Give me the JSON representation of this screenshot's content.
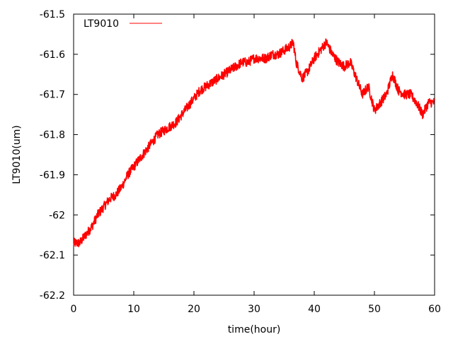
{
  "chart_data": {
    "type": "line",
    "xlabel": "time(hour)",
    "ylabel": "LT9010(um)",
    "xlim": [
      0,
      60
    ],
    "ylim": [
      -62.2,
      -61.5
    ],
    "x_ticks": [
      "0",
      "10",
      "20",
      "30",
      "40",
      "50",
      "60"
    ],
    "x_tick_values": [
      0,
      10,
      20,
      30,
      40,
      50,
      60
    ],
    "y_ticks": [
      "-61.5",
      "-61.6",
      "-61.7",
      "-61.8",
      "-61.9",
      "-62",
      "-62.1",
      "-62.2"
    ],
    "y_tick_values": [
      -61.5,
      -61.6,
      -61.7,
      -61.8,
      -61.9,
      -62.0,
      -62.1,
      -62.2
    ],
    "grid": false,
    "legend_position": "top-left",
    "series": [
      {
        "name": "LT9010",
        "color": "#ff0000",
        "x": [
          0,
          1,
          2,
          3,
          4,
          5,
          6,
          7,
          8,
          9,
          10,
          11,
          12,
          13,
          14,
          15,
          16,
          17,
          18,
          19,
          20,
          21,
          22,
          23,
          24,
          25,
          26,
          27,
          28,
          29,
          30,
          31,
          32,
          33,
          34,
          35,
          36,
          36.5,
          37,
          38,
          39,
          40,
          41,
          42,
          43,
          44,
          45,
          46,
          47,
          48,
          49,
          50,
          51,
          52,
          53,
          54,
          55,
          56,
          57,
          58,
          59,
          60
        ],
        "y": [
          -62.07,
          -62.07,
          -62.05,
          -62.03,
          -62.0,
          -61.98,
          -61.96,
          -61.95,
          -61.93,
          -61.9,
          -61.88,
          -61.86,
          -61.84,
          -61.82,
          -61.8,
          -61.79,
          -61.78,
          -61.77,
          -61.75,
          -61.73,
          -61.71,
          -61.69,
          -61.68,
          -61.67,
          -61.66,
          -61.65,
          -61.64,
          -61.63,
          -61.62,
          -61.62,
          -61.61,
          -61.61,
          -61.61,
          -61.6,
          -61.6,
          -61.59,
          -61.58,
          -61.57,
          -61.62,
          -61.66,
          -61.64,
          -61.61,
          -61.59,
          -61.57,
          -61.6,
          -61.62,
          -61.63,
          -61.62,
          -61.66,
          -61.7,
          -61.68,
          -61.74,
          -61.72,
          -61.7,
          -61.65,
          -61.69,
          -61.7,
          -61.7,
          -61.72,
          -61.75,
          -61.72,
          -61.72
        ],
        "noise_amplitude": 0.012
      }
    ]
  }
}
